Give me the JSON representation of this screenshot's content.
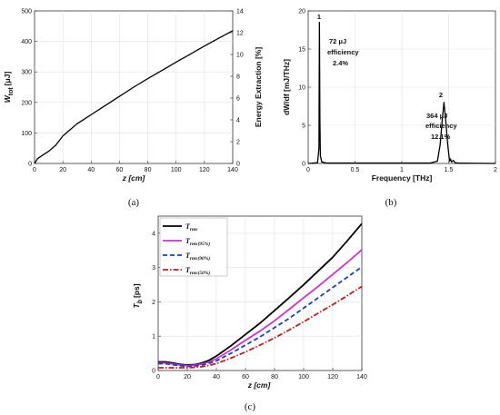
{
  "chart_data": [
    {
      "id": "a",
      "type": "line",
      "caption": "(a)",
      "xlabel": "z [cm]",
      "ylabel": "W tot [μJ]",
      "ylabel_main": "W",
      "ylabel_sub": "tot",
      "ylabel_unit": "[μJ]",
      "y2label": "Energy Extraction [%]",
      "xlim": [
        0,
        140
      ],
      "ylim": [
        0,
        500
      ],
      "y2lim": [
        0,
        14
      ],
      "xticks": [
        "0",
        "20",
        "40",
        "60",
        "80",
        "100",
        "120",
        "140"
      ],
      "yticks": [
        "0",
        "100",
        "200",
        "300",
        "400",
        "500"
      ],
      "y2ticks": [
        "0",
        "2",
        "4",
        "6",
        "8",
        "10",
        "12",
        "14"
      ],
      "grid": true,
      "series": [
        {
          "color": "#000000",
          "x": [
            0,
            2,
            5,
            10,
            15,
            20,
            25,
            30,
            35,
            40,
            50,
            60,
            70,
            80,
            90,
            100,
            110,
            120,
            130,
            140
          ],
          "y": [
            0,
            15,
            25,
            40,
            60,
            90,
            110,
            130,
            145,
            160,
            190,
            220,
            250,
            278,
            305,
            332,
            358,
            385,
            410,
            435
          ]
        }
      ]
    },
    {
      "id": "b",
      "type": "line",
      "caption": "(b)",
      "xlabel": "Frequency [THz]",
      "ylabel": "dW/df [mJ/THz]",
      "xlim": [
        0,
        2
      ],
      "ylim": [
        0,
        20
      ],
      "xticks": [
        "0",
        "0.5",
        "1",
        "1.5",
        "2"
      ],
      "yticks": [
        "0",
        "5",
        "10",
        "15",
        "20"
      ],
      "grid": true,
      "annotations": {
        "peak1": {
          "label": "1",
          "energy": "72 μJ",
          "name": "efficiency",
          "eff": "2.4%"
        },
        "peak2": {
          "label": "2",
          "energy": "364 μJ",
          "name": "efficiency",
          "eff": "12.1%"
        }
      },
      "series": [
        {
          "color": "#000000",
          "x": [
            0,
            0.1,
            0.115,
            0.12,
            0.125,
            0.13,
            0.145,
            0.2,
            1.3,
            1.38,
            1.41,
            1.43,
            1.45,
            1.47,
            1.49,
            1.51,
            1.52,
            1.53,
            1.55,
            1.57,
            1.6,
            2.0
          ],
          "y": [
            0,
            0.1,
            2,
            18.5,
            6,
            1,
            0.2,
            0.05,
            0.05,
            0.3,
            2.5,
            5.5,
            8,
            5.5,
            2.5,
            0.3,
            0.6,
            0.2,
            0.4,
            0.1,
            0.05,
            0
          ]
        }
      ]
    },
    {
      "id": "c",
      "type": "line",
      "caption": "(c)",
      "xlabel": "z [cm]",
      "ylabel": "T b [ps]",
      "ylabel_main": "T",
      "ylabel_sub": "b",
      "ylabel_unit": "[ps]",
      "xlim": [
        0,
        140
      ],
      "ylim": [
        0,
        4.5
      ],
      "xticks": [
        "0",
        "20",
        "40",
        "60",
        "80",
        "100",
        "120",
        "140"
      ],
      "yticks": [
        "0",
        "1",
        "2",
        "3",
        "4"
      ],
      "grid": true,
      "legend_position": "top-left",
      "series": [
        {
          "name": "T rms",
          "name_main": "T",
          "name_sub": "rms",
          "name_suffix": "",
          "color": "#000000",
          "dash": "solid",
          "x": [
            0,
            5,
            10,
            15,
            20,
            25,
            30,
            35,
            40,
            50,
            60,
            70,
            80,
            90,
            100,
            110,
            120,
            130,
            140
          ],
          "y": [
            0.25,
            0.25,
            0.22,
            0.18,
            0.16,
            0.17,
            0.22,
            0.3,
            0.42,
            0.72,
            1.05,
            1.38,
            1.75,
            2.12,
            2.5,
            2.9,
            3.3,
            3.78,
            4.28
          ]
        },
        {
          "name": "T rms(95%)",
          "name_main": "T",
          "name_sub": "rms",
          "name_suffix": "(95%)",
          "color": "#cc33cc",
          "dash": "solid",
          "x": [
            0,
            5,
            10,
            15,
            20,
            25,
            30,
            35,
            40,
            50,
            60,
            70,
            80,
            90,
            100,
            110,
            120,
            130,
            140
          ],
          "y": [
            0.22,
            0.22,
            0.19,
            0.16,
            0.14,
            0.15,
            0.19,
            0.25,
            0.34,
            0.6,
            0.88,
            1.15,
            1.45,
            1.78,
            2.12,
            2.45,
            2.8,
            3.15,
            3.52
          ]
        },
        {
          "name": "T rms(90%)",
          "name_main": "T",
          "name_sub": "rms",
          "name_suffix": "(90%)",
          "color": "#1f3fbf",
          "dash": "dashed",
          "x": [
            0,
            5,
            10,
            15,
            20,
            25,
            30,
            35,
            40,
            50,
            60,
            70,
            80,
            90,
            100,
            110,
            120,
            130,
            140
          ],
          "y": [
            0.2,
            0.2,
            0.17,
            0.14,
            0.12,
            0.13,
            0.16,
            0.21,
            0.28,
            0.5,
            0.74,
            0.98,
            1.25,
            1.52,
            1.82,
            2.12,
            2.42,
            2.72,
            3.02
          ]
        },
        {
          "name": "T rms(50%)",
          "name_main": "T",
          "name_sub": "rms",
          "name_suffix": "(50%)",
          "color": "#bb1e1e",
          "dash": "dashdot",
          "x": [
            0,
            5,
            10,
            15,
            20,
            25,
            30,
            35,
            40,
            50,
            60,
            70,
            80,
            90,
            100,
            110,
            120,
            130,
            140
          ],
          "y": [
            0.08,
            0.08,
            0.08,
            0.08,
            0.08,
            0.09,
            0.11,
            0.15,
            0.2,
            0.36,
            0.54,
            0.74,
            0.95,
            1.18,
            1.42,
            1.67,
            1.92,
            2.18,
            2.45
          ]
        }
      ]
    }
  ]
}
